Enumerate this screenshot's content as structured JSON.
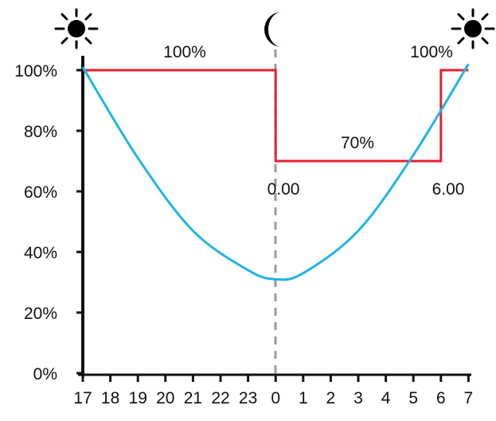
{
  "chart_data": {
    "type": "line",
    "categories": [
      "17",
      "18",
      "19",
      "20",
      "21",
      "22",
      "23",
      "0",
      "1",
      "2",
      "3",
      "4",
      "5",
      "6",
      "7"
    ],
    "y_ticks": [
      "0%",
      "20%",
      "40%",
      "60%",
      "80%",
      "100%"
    ],
    "ylim": [
      0,
      100
    ],
    "series": [
      {
        "color": "#e8202f",
        "style": "step",
        "x": [
          "17",
          "0",
          "0",
          "6",
          "6",
          "7"
        ],
        "values": [
          100,
          100,
          70,
          70,
          100,
          100
        ]
      },
      {
        "color": "#1fb5e6",
        "style": "smooth",
        "x": [
          "17",
          "19",
          "21",
          "23",
          "0",
          "1",
          "3",
          "5",
          "7"
        ],
        "values": [
          101,
          71,
          47,
          34,
          31,
          33,
          47,
          72,
          102
        ]
      }
    ],
    "annotations": {
      "left_100": "100%",
      "right_100": "100%",
      "middle_70": "70%",
      "time_0": "0.00",
      "time_6": "6.00"
    },
    "icons": [
      "sun-icon",
      "moon-icon",
      "sun-icon"
    ],
    "midnight_line": "0",
    "axis_color": "#111111",
    "midnight_line_color": "#9a9a9a"
  }
}
